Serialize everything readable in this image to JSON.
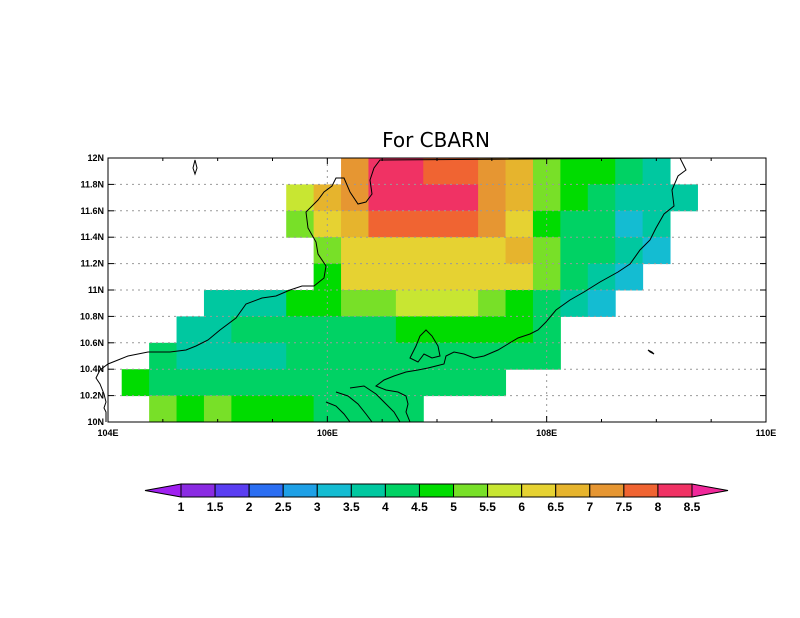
{
  "title": "For CBARN",
  "chart_data": {
    "type": "heatmap",
    "title": "For CBARN",
    "x_ticks": [
      "104E",
      "106E",
      "108E",
      "110E"
    ],
    "x_tick_values": [
      104,
      106,
      108,
      110
    ],
    "y_ticks": [
      "10N",
      "10.2N",
      "10.4N",
      "10.6N",
      "10.8N",
      "11N",
      "11.2N",
      "11.4N",
      "11.6N",
      "11.8N",
      "12N"
    ],
    "y_tick_values": [
      10,
      10.2,
      10.4,
      10.6,
      10.8,
      11,
      11.2,
      11.4,
      11.6,
      11.8,
      12
    ],
    "xlim": [
      104,
      110
    ],
    "ylim": [
      10,
      12
    ],
    "grid": true,
    "colorbar": {
      "labels": [
        "1",
        "1.5",
        "2",
        "2.5",
        "3",
        "3.5",
        "4",
        "4.5",
        "5",
        "5.5",
        "6",
        "6.5",
        "7",
        "7.5",
        "8",
        "8.5"
      ],
      "colors": [
        "#a020f0",
        "#8a2be2",
        "#5a3ef2",
        "#2b6ef2",
        "#1ea0e6",
        "#14bcd2",
        "#00c8a0",
        "#00d264",
        "#00dc00",
        "#78e028",
        "#c8e632",
        "#e6d232",
        "#e6b42d",
        "#e69632",
        "#f06432",
        "#f03264",
        "#f0289a"
      ]
    },
    "cell_size": [
      0.25,
      0.2
    ],
    "rows": [
      {
        "lat": 11.9,
        "cells": [
          [
            106.25,
            7
          ],
          [
            106.5,
            8
          ],
          [
            106.75,
            8
          ],
          [
            107.0,
            7.5
          ],
          [
            107.25,
            7.5
          ],
          [
            107.5,
            7
          ],
          [
            107.75,
            6.5
          ],
          [
            108.0,
            5
          ],
          [
            108.25,
            4.5
          ],
          [
            108.5,
            4.5
          ],
          [
            108.75,
            4
          ],
          [
            109.0,
            3.5
          ]
        ]
      },
      {
        "lat": 11.7,
        "cells": [
          [
            105.75,
            5.5
          ],
          [
            106.0,
            6.5
          ],
          [
            106.25,
            7
          ],
          [
            106.5,
            8
          ],
          [
            106.75,
            8
          ],
          [
            107.0,
            8
          ],
          [
            107.25,
            8
          ],
          [
            107.5,
            7
          ],
          [
            107.75,
            6.5
          ],
          [
            108.0,
            5
          ],
          [
            108.25,
            4.5
          ],
          [
            108.5,
            4
          ],
          [
            108.75,
            3.5
          ],
          [
            109.0,
            3.5
          ],
          [
            109.25,
            3.5
          ]
        ]
      },
      {
        "lat": 11.5,
        "cells": [
          [
            105.75,
            5
          ],
          [
            106.0,
            6
          ],
          [
            106.25,
            6.5
          ],
          [
            106.5,
            7.5
          ],
          [
            106.75,
            7.5
          ],
          [
            107.0,
            7.5
          ],
          [
            107.25,
            7.5
          ],
          [
            107.5,
            7
          ],
          [
            107.75,
            6
          ],
          [
            108.0,
            4.5
          ],
          [
            108.25,
            4
          ],
          [
            108.5,
            4
          ],
          [
            108.75,
            3
          ],
          [
            109.0,
            3.5
          ]
        ]
      },
      {
        "lat": 11.3,
        "cells": [
          [
            106.0,
            5
          ],
          [
            106.25,
            6
          ],
          [
            106.5,
            6
          ],
          [
            106.75,
            6
          ],
          [
            107.0,
            6
          ],
          [
            107.25,
            6
          ],
          [
            107.5,
            6
          ],
          [
            107.75,
            6.5
          ],
          [
            108.0,
            5
          ],
          [
            108.25,
            4
          ],
          [
            108.5,
            4
          ],
          [
            108.75,
            3.5
          ],
          [
            109.0,
            3
          ]
        ]
      },
      {
        "lat": 11.1,
        "cells": [
          [
            106.0,
            4.5
          ],
          [
            106.25,
            6
          ],
          [
            106.5,
            6
          ],
          [
            106.75,
            6
          ],
          [
            107.0,
            6
          ],
          [
            107.25,
            6
          ],
          [
            107.5,
            6
          ],
          [
            107.75,
            6
          ],
          [
            108.0,
            5
          ],
          [
            108.25,
            4
          ],
          [
            108.5,
            3.5
          ],
          [
            108.75,
            3
          ]
        ]
      },
      {
        "lat": 10.9,
        "cells": [
          [
            105.0,
            3.5
          ],
          [
            105.25,
            3.5
          ],
          [
            105.5,
            3.5
          ],
          [
            105.75,
            4.5
          ],
          [
            106.0,
            4.5
          ],
          [
            106.25,
            5
          ],
          [
            106.5,
            5
          ],
          [
            106.75,
            5.5
          ],
          [
            107.0,
            5.5
          ],
          [
            107.25,
            5.5
          ],
          [
            107.5,
            5
          ],
          [
            107.75,
            4.5
          ],
          [
            108.0,
            4
          ],
          [
            108.25,
            3.5
          ],
          [
            108.5,
            3
          ]
        ]
      },
      {
        "lat": 10.7,
        "cells": [
          [
            104.75,
            3.5
          ],
          [
            105.0,
            3.5
          ],
          [
            105.25,
            4
          ],
          [
            105.5,
            4
          ],
          [
            105.75,
            4
          ],
          [
            106.0,
            4
          ],
          [
            106.25,
            4
          ],
          [
            106.5,
            4
          ],
          [
            106.75,
            4.5
          ],
          [
            107.0,
            4.5
          ],
          [
            107.25,
            4.5
          ],
          [
            107.5,
            4.5
          ],
          [
            107.75,
            4.5
          ],
          [
            108.0,
            4
          ]
        ]
      },
      {
        "lat": 10.5,
        "cells": [
          [
            104.5,
            4
          ],
          [
            104.75,
            3.5
          ],
          [
            105.0,
            3.5
          ],
          [
            105.25,
            3.5
          ],
          [
            105.5,
            3.5
          ],
          [
            105.75,
            4
          ],
          [
            106.0,
            4
          ],
          [
            106.25,
            4
          ],
          [
            106.5,
            4
          ],
          [
            106.75,
            4
          ],
          [
            107.0,
            4
          ],
          [
            107.25,
            4
          ],
          [
            107.5,
            4
          ],
          [
            107.75,
            4
          ],
          [
            108.0,
            4
          ]
        ]
      },
      {
        "lat": 10.3,
        "cells": [
          [
            104.25,
            4.5
          ],
          [
            104.5,
            4
          ],
          [
            104.75,
            4
          ],
          [
            105.0,
            4
          ],
          [
            105.25,
            4
          ],
          [
            105.5,
            4
          ],
          [
            105.75,
            4
          ],
          [
            106.0,
            4
          ],
          [
            106.25,
            4
          ],
          [
            106.5,
            4
          ],
          [
            106.75,
            4
          ],
          [
            107.0,
            4
          ],
          [
            107.25,
            4
          ],
          [
            107.5,
            4
          ]
        ]
      },
      {
        "lat": 10.1,
        "cells": [
          [
            104.5,
            5
          ],
          [
            104.75,
            4.5
          ],
          [
            105.0,
            5
          ],
          [
            105.25,
            4.5
          ],
          [
            105.5,
            4.5
          ],
          [
            105.75,
            4.5
          ],
          [
            106.0,
            4
          ],
          [
            106.25,
            4
          ],
          [
            106.5,
            4
          ],
          [
            106.75,
            4
          ]
        ]
      }
    ]
  }
}
